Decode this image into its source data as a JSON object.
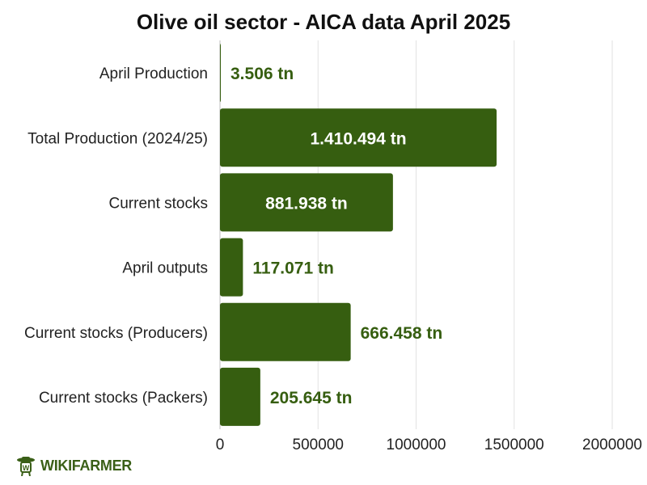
{
  "title": "Olive oil sector - AICA data April 2025",
  "brand": {
    "name": "WIKIFARMER",
    "icon": "farmer-logo-icon"
  },
  "colors": {
    "bar": "#365e10",
    "label_inside": "#ffffff",
    "label_outside": "#365e10",
    "grid": "#e2e2e2"
  },
  "chart_data": {
    "type": "bar",
    "orientation": "horizontal",
    "categories": [
      "April Production",
      "Total Production (2024/25)",
      "Current stocks",
      "April outputs",
      "Current stocks (Producers)",
      "Current stocks (Packers)"
    ],
    "values": [
      3506,
      1410494,
      881938,
      117071,
      666458,
      205645
    ],
    "data_labels": [
      "3.506 tn",
      "1.410.494 tn",
      "881.938 tn",
      "117.071 tn",
      "666.458 tn",
      "205.645 tn"
    ],
    "xlim": [
      0,
      2000000
    ],
    "xticks": [
      0,
      500000,
      1000000,
      1500000,
      2000000
    ],
    "xtick_labels": [
      "0",
      "500000",
      "1000000",
      "1500000",
      "2000000"
    ],
    "grid": true,
    "legend": "none"
  }
}
